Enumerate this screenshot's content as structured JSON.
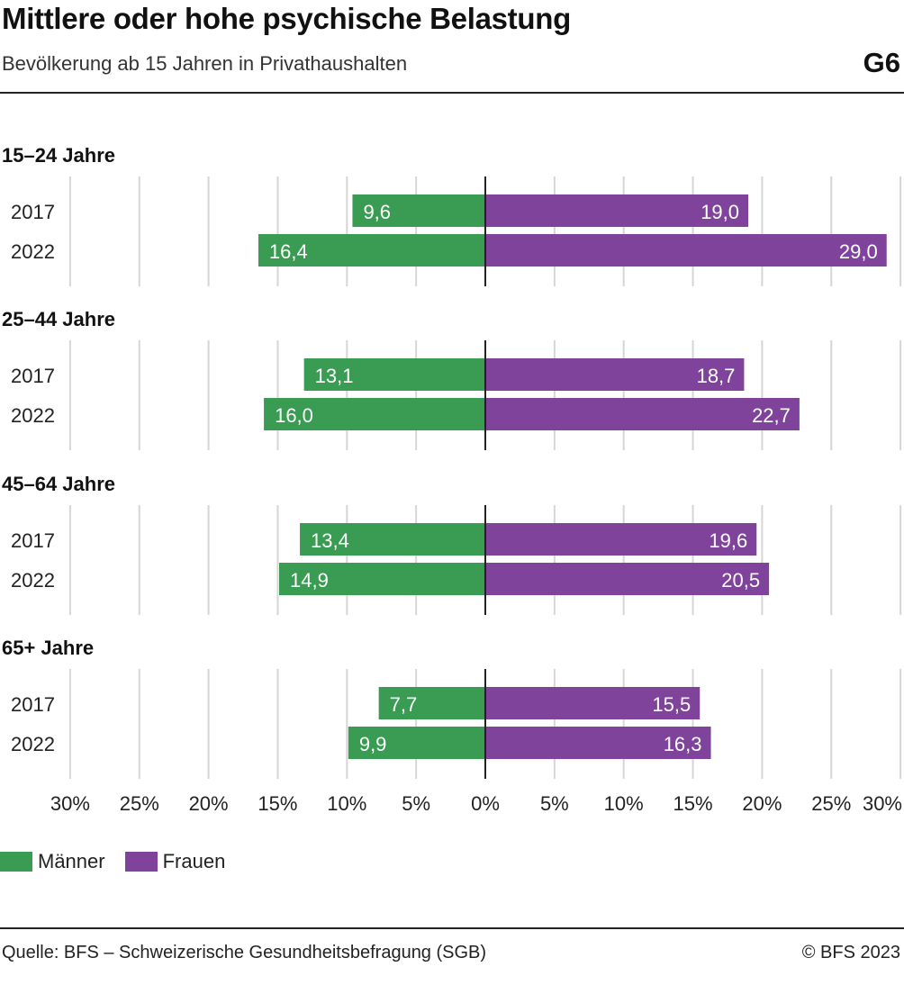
{
  "title": "Mittlere oder hohe psychische Belastung",
  "subtitle": "Bevölkerung ab 15 Jahren in Privathaushalten",
  "graphic_number": "G6",
  "source": "Quelle: BFS – Schweizerische Gesundheitsbefragung (SGB)",
  "copyright": "© BFS 2023",
  "colors": {
    "men": "#3a9b53",
    "women": "#80439b",
    "grid": "#d6d6d6",
    "axis": "#222222"
  },
  "legend": [
    {
      "label": "Männer",
      "color": "#3a9b53"
    },
    {
      "label": "Frauen",
      "color": "#80439b"
    }
  ],
  "chart_data": {
    "type": "bar",
    "orientation": "horizontal-diverging",
    "xlim": [
      -30,
      30
    ],
    "x_ticks": [
      -30,
      -25,
      -20,
      -15,
      -10,
      -5,
      0,
      5,
      10,
      15,
      20,
      25,
      30
    ],
    "x_tick_labels": [
      "30%",
      "25%",
      "20%",
      "15%",
      "10%",
      "5%",
      "0%",
      "5%",
      "10%",
      "15%",
      "20%",
      "25%",
      "30%"
    ],
    "grid": true,
    "legend_position": "bottom-left",
    "groups": [
      {
        "label": "15–24 Jahre",
        "rows": [
          {
            "year": "2017",
            "men": 9.6,
            "men_label": "9,6",
            "women": 19.0,
            "women_label": "19,0"
          },
          {
            "year": "2022",
            "men": 16.4,
            "men_label": "16,4",
            "women": 29.0,
            "women_label": "29,0"
          }
        ]
      },
      {
        "label": "25–44 Jahre",
        "rows": [
          {
            "year": "2017",
            "men": 13.1,
            "men_label": "13,1",
            "women": 18.7,
            "women_label": "18,7"
          },
          {
            "year": "2022",
            "men": 16.0,
            "men_label": "16,0",
            "women": 22.7,
            "women_label": "22,7"
          }
        ]
      },
      {
        "label": "45–64 Jahre",
        "rows": [
          {
            "year": "2017",
            "men": 13.4,
            "men_label": "13,4",
            "women": 19.6,
            "women_label": "19,6"
          },
          {
            "year": "2022",
            "men": 14.9,
            "men_label": "14,9",
            "women": 20.5,
            "women_label": "20,5"
          }
        ]
      },
      {
        "label": "65+ Jahre",
        "rows": [
          {
            "year": "2017",
            "men": 7.7,
            "men_label": "7,7",
            "women": 15.5,
            "women_label": "15,5"
          },
          {
            "year": "2022",
            "men": 9.9,
            "men_label": "9,9",
            "women": 16.3,
            "women_label": "16,3"
          }
        ]
      }
    ]
  }
}
